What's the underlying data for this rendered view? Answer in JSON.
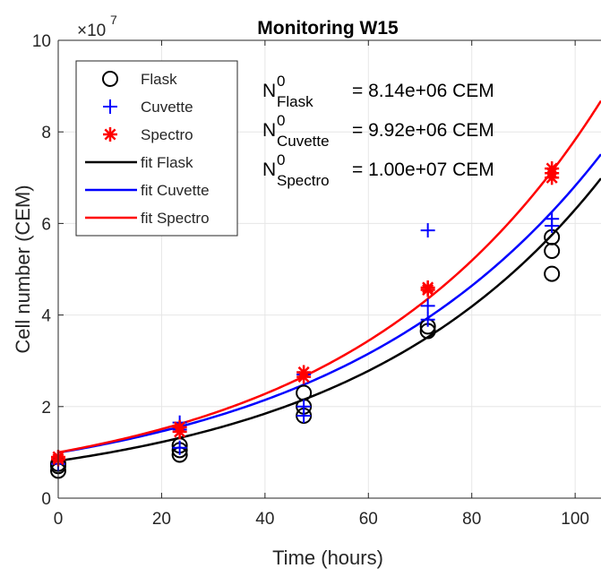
{
  "chart_data": {
    "type": "scatter",
    "title": "Monitoring W15",
    "xlabel": "Time (hours)",
    "ylabel": "Cell number (CEM)",
    "xlim": [
      0,
      105
    ],
    "ylim": [
      0,
      100000000
    ],
    "x_ticks": [
      0,
      20,
      40,
      60,
      80,
      100
    ],
    "x_tick_labels": [
      "0",
      "20",
      "40",
      "60",
      "80",
      "100"
    ],
    "y_ticks": [
      0,
      20000000,
      40000000,
      60000000,
      80000000,
      100000000
    ],
    "y_tick_labels": [
      "0",
      "2",
      "4",
      "6",
      "8",
      "10"
    ],
    "y_exponent_label": "×10",
    "y_exponent_power": "7",
    "grid": true,
    "legend_position": "top-left",
    "series": [
      {
        "name": "Flask",
        "marker": "circle",
        "color": "#000000",
        "points": [
          [
            0,
            6000000
          ],
          [
            0,
            7000000
          ],
          [
            0,
            7500000
          ],
          [
            23.5,
            9500000
          ],
          [
            23.5,
            10500000
          ],
          [
            23.5,
            11500000
          ],
          [
            47.5,
            18000000
          ],
          [
            47.5,
            20000000
          ],
          [
            47.5,
            23000000
          ],
          [
            71.5,
            36500000
          ],
          [
            71.5,
            37500000
          ],
          [
            95.5,
            49000000
          ],
          [
            95.5,
            54000000
          ],
          [
            95.5,
            57000000
          ]
        ]
      },
      {
        "name": "Cuvette",
        "marker": "plus",
        "color": "#0000ff",
        "points": [
          [
            0,
            7500000
          ],
          [
            0,
            8500000
          ],
          [
            0,
            9000000
          ],
          [
            23.5,
            11000000
          ],
          [
            23.5,
            15000000
          ],
          [
            23.5,
            16500000
          ],
          [
            47.5,
            18000000
          ],
          [
            47.5,
            20000000
          ],
          [
            47.5,
            27000000
          ],
          [
            71.5,
            39000000
          ],
          [
            71.5,
            42000000
          ],
          [
            71.5,
            58500000
          ],
          [
            95.5,
            59500000
          ],
          [
            95.5,
            61000000
          ]
        ]
      },
      {
        "name": "Spectro",
        "marker": "asterisk",
        "color": "#ff0000",
        "points": [
          [
            0,
            8500000
          ],
          [
            0,
            9000000
          ],
          [
            23.5,
            14500000
          ],
          [
            23.5,
            15500000
          ],
          [
            47.5,
            26500000
          ],
          [
            47.5,
            27500000
          ],
          [
            71.5,
            45500000
          ],
          [
            71.5,
            46000000
          ],
          [
            95.5,
            70000000
          ],
          [
            95.5,
            71000000
          ],
          [
            95.5,
            72000000
          ]
        ]
      },
      {
        "name": "fit Flask",
        "type": "line",
        "color": "#000000",
        "n0": 8140000,
        "rate": 0.02047
      },
      {
        "name": "fit Cuvette",
        "type": "line",
        "color": "#0000ff",
        "n0": 9920000,
        "rate": 0.01928
      },
      {
        "name": "fit Spectro",
        "type": "line",
        "color": "#ff0000",
        "n0": 10000000,
        "rate": 0.02058
      }
    ],
    "annotations": [
      {
        "base": "N",
        "sup": "0",
        "sub": "Flask",
        "value": "= 8.14e+06 CEM"
      },
      {
        "base": "N",
        "sup": "0",
        "sub": "Cuvette",
        "value": "= 9.92e+06 CEM"
      },
      {
        "base": "N",
        "sup": "0",
        "sub": "Spectro",
        "value": "= 1.00e+07 CEM"
      }
    ]
  }
}
